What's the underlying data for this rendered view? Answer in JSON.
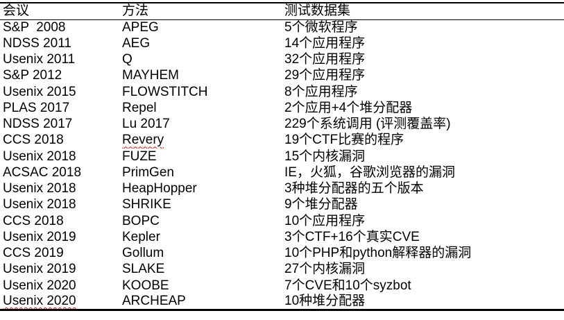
{
  "colors": {
    "text": "#000000",
    "background": "#ffffff",
    "table_border": "#000000",
    "spellcheck_underline": "#ff0000"
  },
  "table": {
    "columns": [
      {
        "key": "conference",
        "label": "会议"
      },
      {
        "key": "method",
        "label": "方法"
      },
      {
        "key": "dataset",
        "label": "测试数据集"
      }
    ],
    "rows": [
      {
        "conference": "S&P  2008",
        "method": "APEG",
        "dataset": "5个微软程序"
      },
      {
        "conference": "NDSS 2011",
        "method": "AEG",
        "dataset": "14个应用程序"
      },
      {
        "conference": "Usenix 2011",
        "method": "Q",
        "dataset": "32个应用程序"
      },
      {
        "conference": "S&P 2012",
        "method": "MAYHEM",
        "dataset": "29个应用程序"
      },
      {
        "conference": "Usenix 2015",
        "method": "FLOWSTITCH",
        "dataset": "8个应用程序"
      },
      {
        "conference": "PLAS 2017",
        "method": "Repel",
        "dataset": "2个应用+4个堆分配器"
      },
      {
        "conference": "NDSS 2017",
        "method": "Lu 2017",
        "dataset": "229个系统调用 (评测覆盖率)"
      },
      {
        "conference": "CCS 2018",
        "method": "Revery",
        "dataset": "19个CTF比赛的程序",
        "spellcheck": "method"
      },
      {
        "conference": "Usenix 2018",
        "method": "FUZE",
        "dataset": "15个内核漏洞"
      },
      {
        "conference": "ACSAC 2018",
        "method": "PrimGen",
        "dataset": "IE，火狐，谷歌浏览器的漏洞"
      },
      {
        "conference": "Usenix 2018",
        "method": "HeapHopper",
        "dataset": "3种堆分配器的五个版本"
      },
      {
        "conference": "Usenix 2018",
        "method": "SHRIKE",
        "dataset": "9个堆分配器"
      },
      {
        "conference": "CCS 2018",
        "method": "BOPC",
        "dataset": "10个应用程序"
      },
      {
        "conference": "Usenix 2019",
        "method": "Kepler",
        "dataset": "3个CTF+16个真实CVE"
      },
      {
        "conference": "CCS 2019",
        "method": "Gollum",
        "dataset": "10个PHP和python解释器的漏洞"
      },
      {
        "conference": "Usenix 2019",
        "method": "SLAKE",
        "dataset": "27个内核漏洞"
      },
      {
        "conference": "Usenix 2020",
        "method": "KOOBE",
        "dataset": "7个CVE和10个syzbot"
      },
      {
        "conference": "Usenix 2020",
        "method": "ARCHEAP",
        "dataset": "10种堆分配器",
        "spellcheck": "conference"
      }
    ]
  }
}
